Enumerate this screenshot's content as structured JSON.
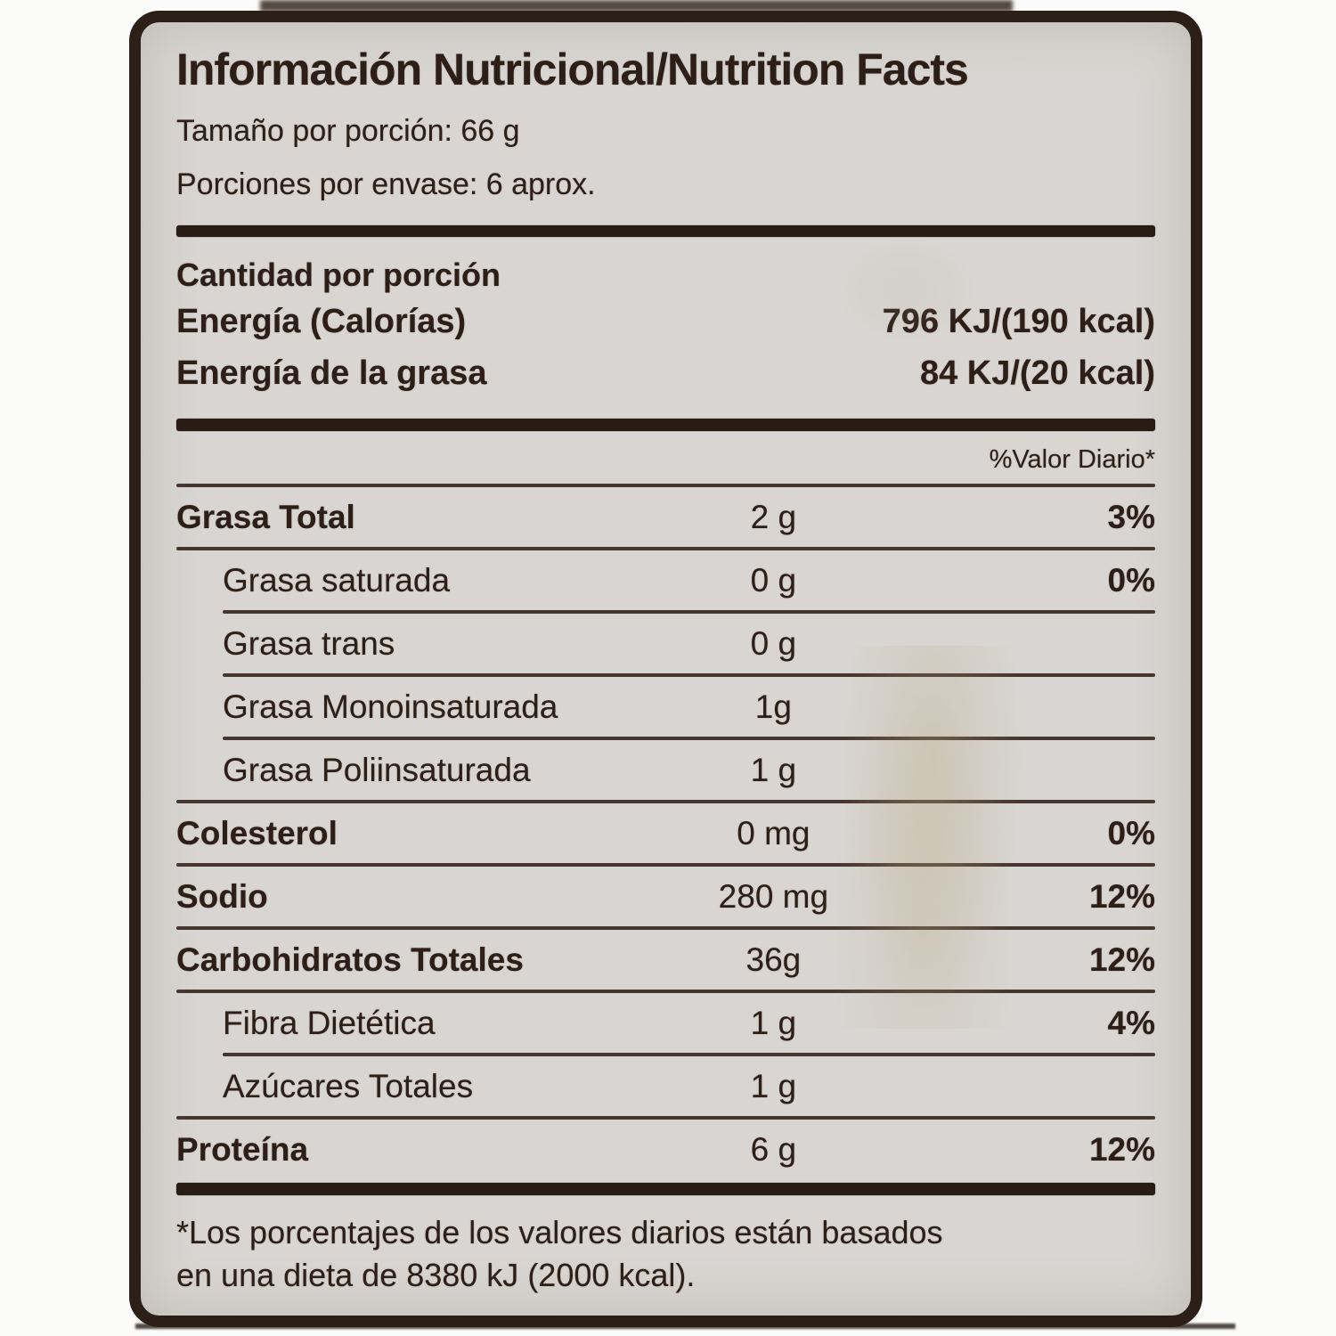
{
  "label": {
    "title": "Información Nutricional/Nutrition Facts",
    "serving_size": "Tamaño por porción: 66 g",
    "servings_per_container": "Porciones por envase: 6 aprox.",
    "amount_per_serving_heading": "Cantidad por porción",
    "energy_rows": [
      {
        "name": "Energía (Calorías)",
        "value": "796 KJ/(190 kcal)"
      },
      {
        "name": "Energía de la grasa",
        "value": "84 KJ/(20 kcal)"
      }
    ],
    "daily_value_header": "%Valor Diario*",
    "nutrient_rows": [
      {
        "name": "Grasa Total",
        "amount": "2 g",
        "dv": "3%"
      },
      {
        "name": "Grasa saturada",
        "amount": "0 g",
        "dv": "0%"
      },
      {
        "name": "Grasa trans",
        "amount": "0 g",
        "dv": ""
      },
      {
        "name": "Grasa Monoinsaturada",
        "amount": "1g",
        "dv": ""
      },
      {
        "name": "Grasa Poliinsaturada",
        "amount": "1 g",
        "dv": ""
      },
      {
        "name": "Colesterol",
        "amount": "0 mg",
        "dv": "0%"
      },
      {
        "name": "Sodio",
        "amount": "280 mg",
        "dv": "12%"
      },
      {
        "name": "Carbohidratos Totales",
        "amount": "36g",
        "dv": "12%"
      },
      {
        "name": "Fibra Dietética",
        "amount": "1 g",
        "dv": "4%"
      },
      {
        "name": "Azúcares Totales",
        "amount": "1 g",
        "dv": ""
      },
      {
        "name": "Proteína",
        "amount": "6 g",
        "dv": "12%"
      }
    ],
    "footnote": {
      "line1": "*Los porcentajes de los valores diarios están basados",
      "line2": "en una dieta de 8380 kJ (2000 kcal)."
    },
    "colors": {
      "label_background": "#d8d5d2",
      "ink": "#2d1f17",
      "page_background": "#fbfbfa"
    }
  }
}
